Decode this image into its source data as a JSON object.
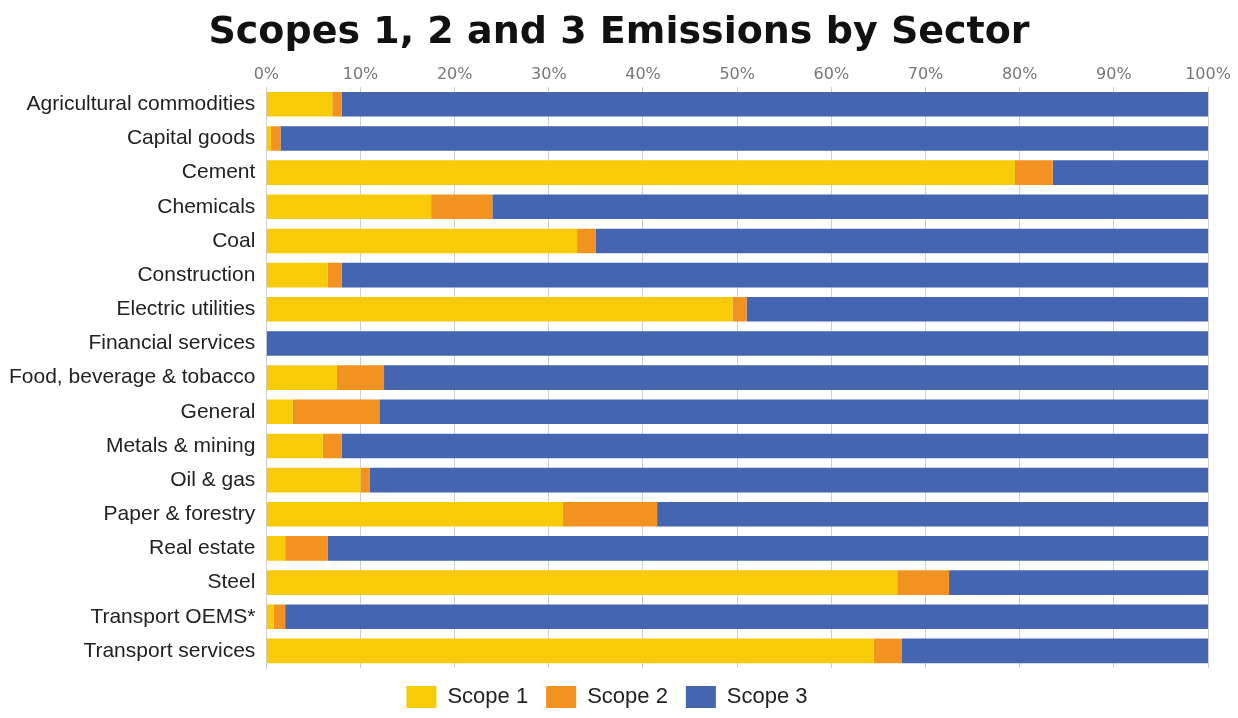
{
  "chart_data": {
    "type": "bar",
    "title": "Scopes 1, 2 and 3 Emissions by Sector",
    "orientation": "horizontal",
    "stacked": true,
    "categories": [
      "Agricultural commodities",
      "Capital goods",
      "Cement",
      "Chemicals",
      "Coal",
      "Construction",
      "Electric utilities",
      "Financial services",
      "Food, beverage & tobacco",
      "General",
      "Metals & mining",
      "Oil & gas",
      "Paper & forestry",
      "Real estate",
      "Steel",
      "Transport OEMS*",
      "Transport services"
    ],
    "series": [
      {
        "name": "Scope 1",
        "color": "#f7cb0a",
        "values": [
          7,
          0.5,
          79.5,
          17.5,
          33,
          6.5,
          49.5,
          0,
          7.5,
          2.8,
          6,
          10,
          31.5,
          2,
          67,
          0.8,
          64.5
        ]
      },
      {
        "name": "Scope 2",
        "color": "#f29220",
        "values": [
          1,
          1,
          4,
          6.5,
          2,
          1.5,
          1.5,
          0,
          5,
          9.2,
          2,
          1,
          10,
          4.5,
          5.5,
          1.2,
          3
        ]
      },
      {
        "name": "Scope 3",
        "color": "#4565b0",
        "values": [
          92,
          98.5,
          16.5,
          76,
          65,
          92,
          49,
          100,
          87.5,
          88,
          92,
          89,
          58.5,
          93.5,
          27.5,
          98,
          32.5
        ]
      }
    ],
    "xlim": [
      0,
      100
    ],
    "xticks": [
      {
        "value": 0,
        "label": "0%"
      },
      {
        "value": 10,
        "label": "10%"
      },
      {
        "value": 20,
        "label": "20%"
      },
      {
        "value": 30,
        "label": "30%"
      },
      {
        "value": 40,
        "label": "40%"
      },
      {
        "value": 50,
        "label": "50%"
      },
      {
        "value": 60,
        "label": "60%"
      },
      {
        "value": 70,
        "label": "70%"
      },
      {
        "value": 80,
        "label": "80%"
      },
      {
        "value": 90,
        "label": "90%"
      },
      {
        "value": 100,
        "label": "100%"
      }
    ],
    "grid": "x",
    "legend": "bottom"
  }
}
